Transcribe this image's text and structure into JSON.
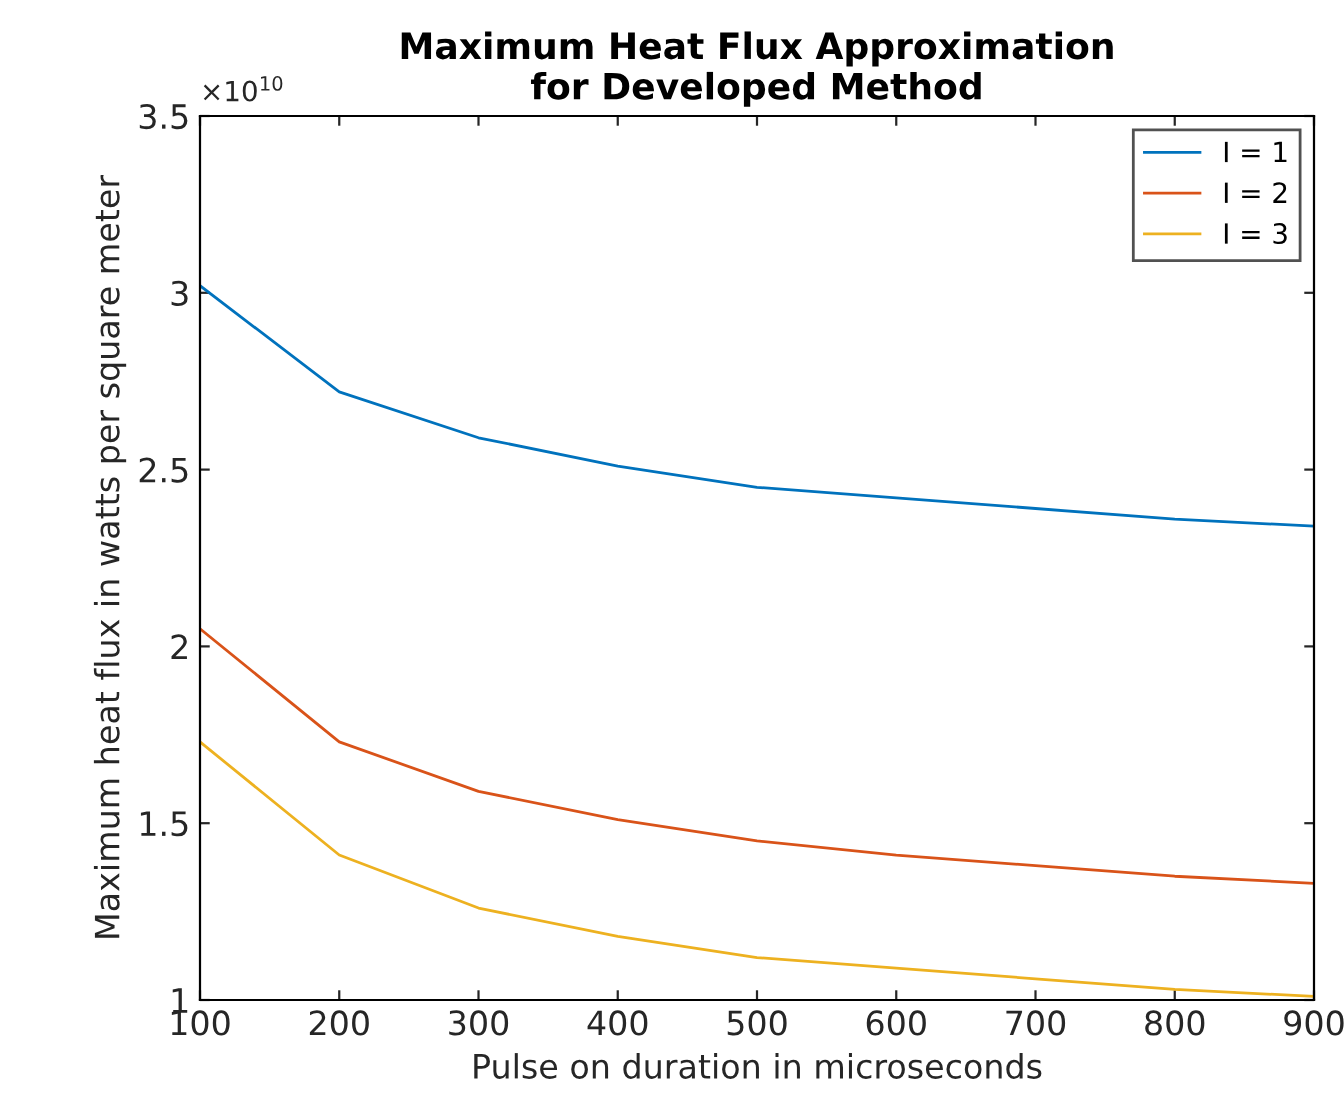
{
  "chart_data": {
    "type": "line",
    "title": "Maximum Heat Flux Approximation\nfor Developed Method",
    "xlabel": "Pulse on duration in microseconds",
    "ylabel": "Maximum heat flux in watts per square meter",
    "annotations": [
      "×10$^{10}$"
    ],
    "x": [
      100,
      200,
      300,
      400,
      500,
      600,
      700,
      800,
      900
    ],
    "series": [
      {
        "name": "I = 1",
        "color": "#0072bd",
        "values": [
          3.02,
          2.72,
          2.59,
          2.51,
          2.45,
          2.42,
          2.39,
          2.36,
          2.34
        ]
      },
      {
        "name": "I = 2",
        "color": "#d95319",
        "values": [
          2.05,
          1.73,
          1.59,
          1.51,
          1.45,
          1.41,
          1.38,
          1.35,
          1.33
        ]
      },
      {
        "name": "I = 3",
        "color": "#edb120",
        "values": [
          1.73,
          1.41,
          1.26,
          1.18,
          1.12,
          1.09,
          1.06,
          1.03,
          1.01
        ]
      }
    ],
    "xlim": [
      100,
      900
    ],
    "ylim": [
      1,
      3.5
    ],
    "xticks": [
      100,
      200,
      300,
      400,
      500,
      600,
      700,
      800,
      900
    ],
    "yticks": [
      1,
      1.5,
      2,
      2.5,
      3,
      3.5
    ],
    "grid": false,
    "legend": "top right",
    "marker": "none",
    "line_style": "solid"
  }
}
